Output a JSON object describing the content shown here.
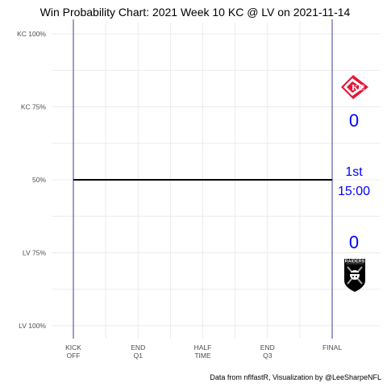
{
  "chart_data": {
    "type": "line",
    "title": "Win Probability Chart: 2021 Week 10 KC @ LV on 2021-11-14",
    "caption": "Data from nflfastR, Visualization by @LeeSharpeNFL",
    "xlabel": "",
    "ylabel": "",
    "xlim": [
      0,
      4
    ],
    "ylim": [
      0,
      1
    ],
    "x_ticks": [
      {
        "value": 0,
        "lines": [
          "KICK",
          "OFF"
        ]
      },
      {
        "value": 1,
        "lines": [
          "END",
          "Q1"
        ]
      },
      {
        "value": 2,
        "lines": [
          "HALF",
          "TIME"
        ]
      },
      {
        "value": 3,
        "lines": [
          "END",
          "Q3"
        ]
      },
      {
        "value": 4,
        "lines": [
          "FINAL"
        ]
      }
    ],
    "y_ticks": [
      {
        "value": 1.0,
        "label": "KC 100%"
      },
      {
        "value": 0.75,
        "label": "KC 75%"
      },
      {
        "value": 0.5,
        "label": "50%"
      },
      {
        "value": 0.25,
        "label": "LV 75%"
      },
      {
        "value": 0.0,
        "label": "LV 100%"
      }
    ],
    "grid": true,
    "series": [
      {
        "x": [
          0,
          4
        ],
        "y": [
          0.5,
          0.5
        ],
        "color": "#000000"
      }
    ],
    "kickoff_final_line_color": "#2b2b8f",
    "home_team": {
      "abbr": "KC",
      "score": "0",
      "logo": "chiefs-logo-icon"
    },
    "away_team": {
      "abbr": "LV",
      "score": "0",
      "logo": "raiders-logo-icon"
    },
    "clock": {
      "quarter": "1st",
      "time": "15:00"
    },
    "label_color": "#0000ff"
  }
}
